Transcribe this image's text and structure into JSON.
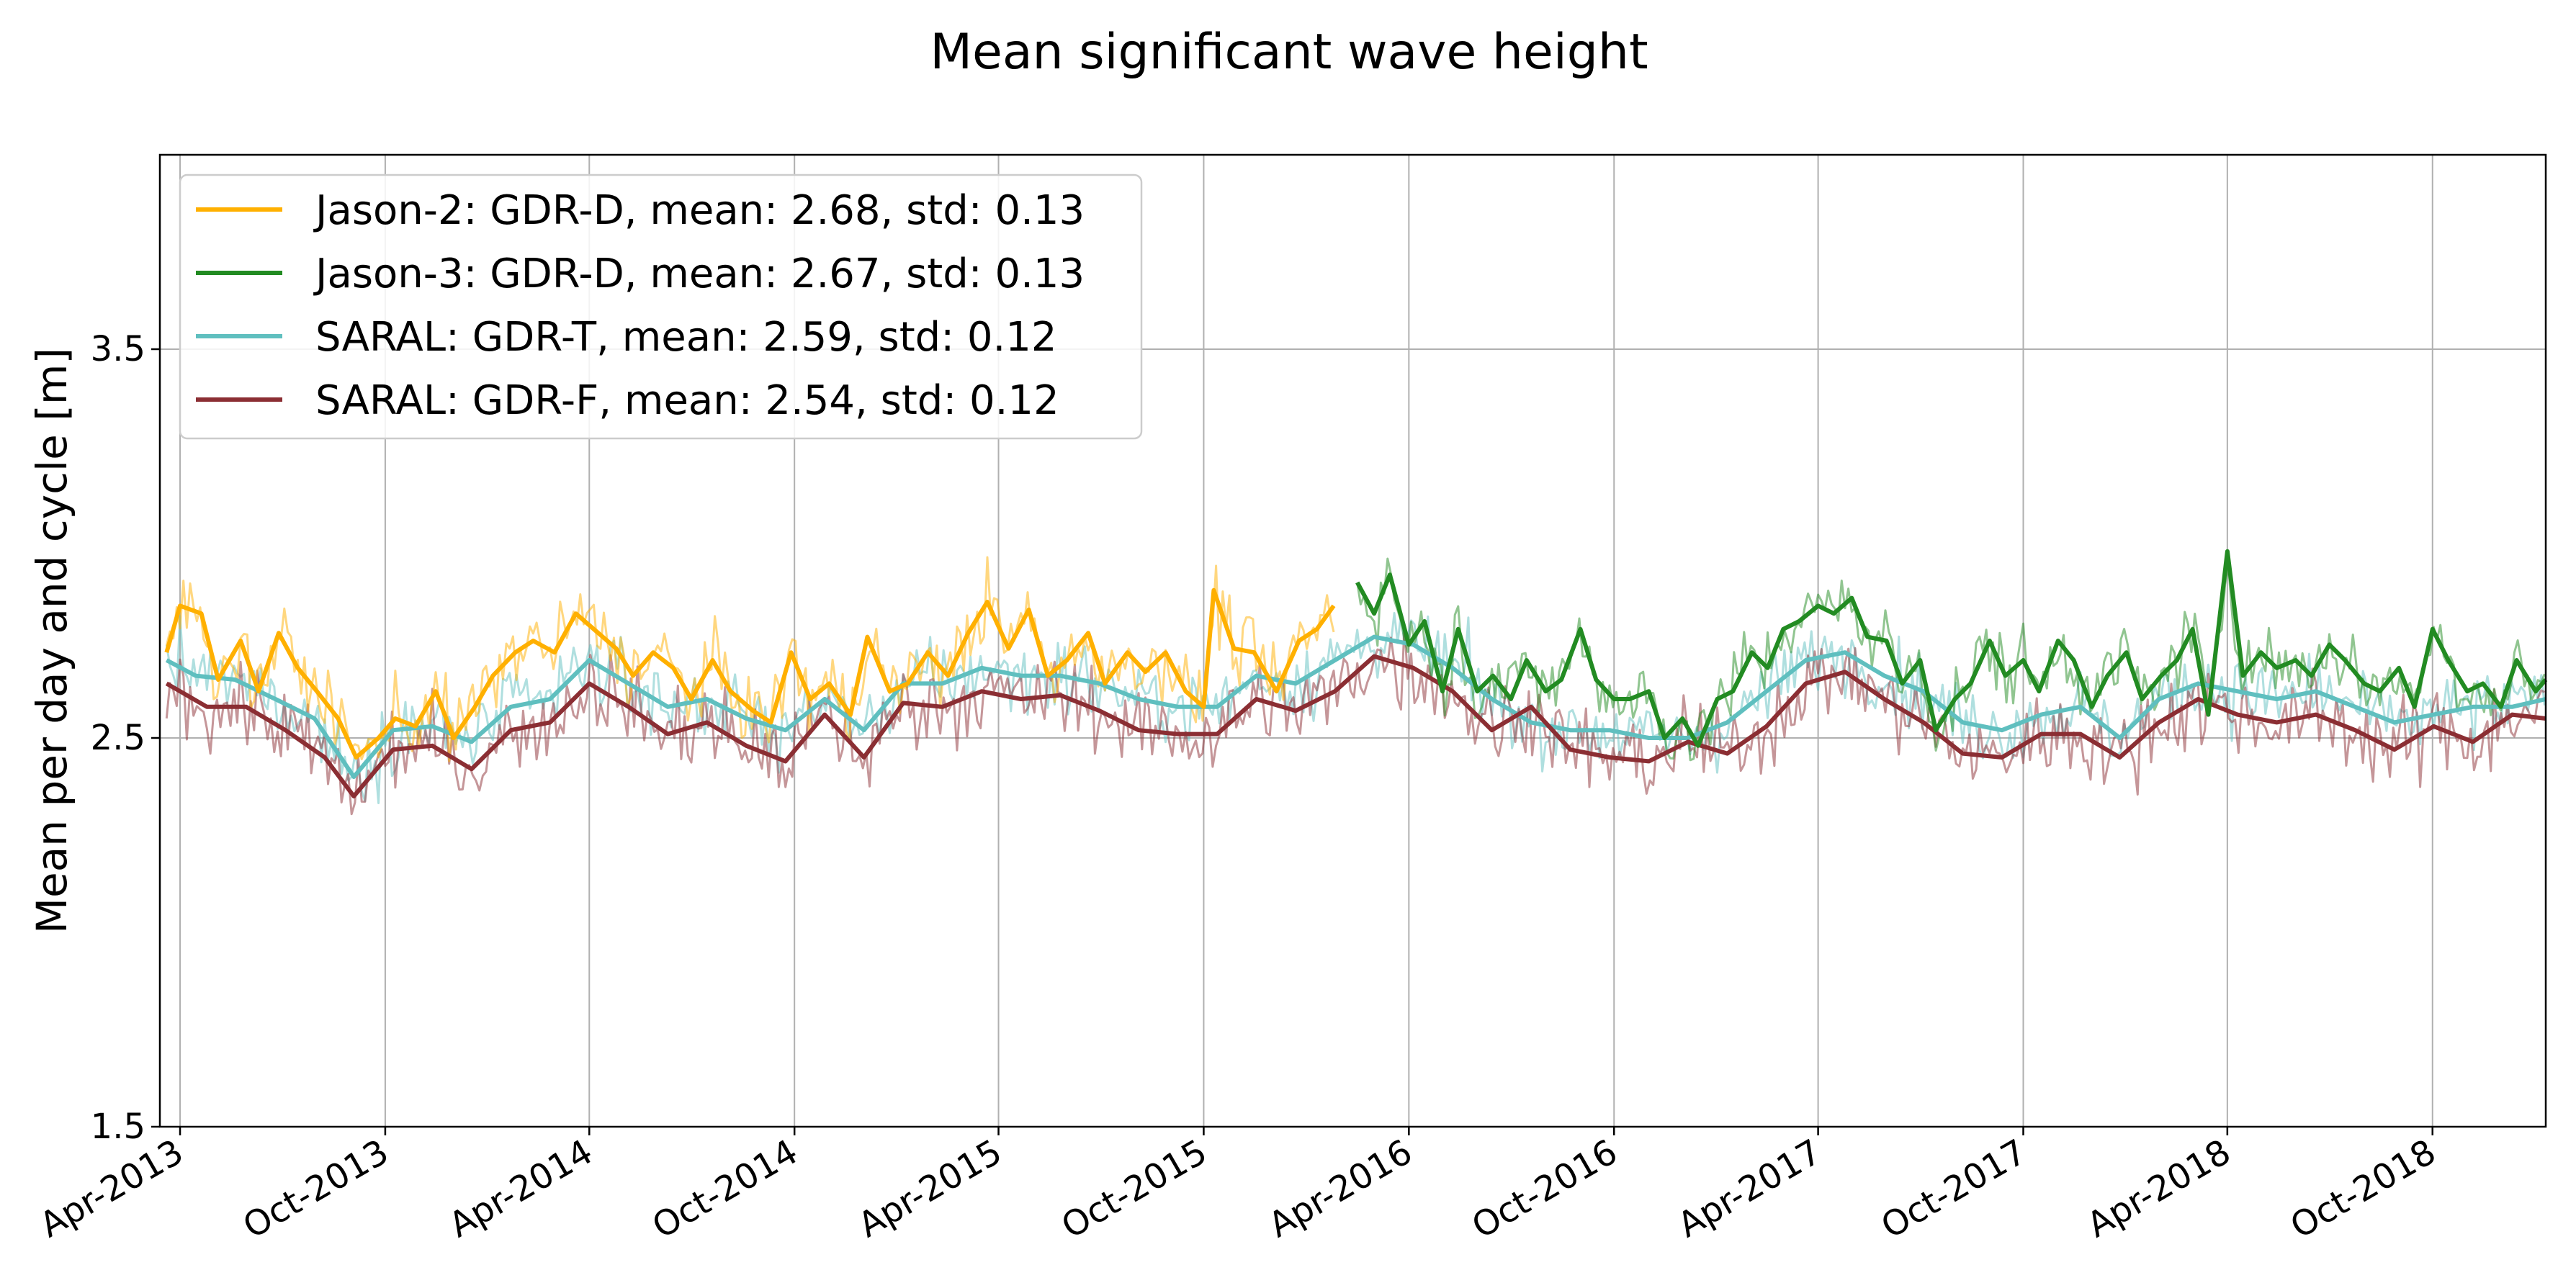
{
  "chart_data": {
    "type": "line",
    "title": "Mean significant wave height",
    "xlabel": "",
    "ylabel": "Mean per day and cycle [m]",
    "ylim": [
      1.5,
      4.0
    ],
    "yticks": [
      1.5,
      2.5,
      3.5
    ],
    "xlim": [
      "2013-03-14",
      "2019-01-10"
    ],
    "xticks": [
      {
        "date": "2013-04-01",
        "label": "Apr-2013"
      },
      {
        "date": "2013-10-01",
        "label": "Oct-2013"
      },
      {
        "date": "2014-04-01",
        "label": "Apr-2014"
      },
      {
        "date": "2014-10-01",
        "label": "Oct-2014"
      },
      {
        "date": "2015-04-01",
        "label": "Apr-2015"
      },
      {
        "date": "2015-10-01",
        "label": "Oct-2015"
      },
      {
        "date": "2016-04-01",
        "label": "Apr-2016"
      },
      {
        "date": "2016-10-01",
        "label": "Oct-2016"
      },
      {
        "date": "2017-04-01",
        "label": "Apr-2017"
      },
      {
        "date": "2017-10-01",
        "label": "Oct-2017"
      },
      {
        "date": "2018-04-01",
        "label": "Apr-2018"
      },
      {
        "date": "2018-10-01",
        "label": "Oct-2018"
      }
    ],
    "grid": true,
    "legend_position": "upper-left",
    "series": [
      {
        "name": "Jason-2: GDR-D, mean: 2.68, std: 0.13",
        "color": "#ffb000",
        "cycle_points": [
          [
            "2013-03-20",
            2.72
          ],
          [
            "2013-04-01",
            2.84
          ],
          [
            "2013-04-20",
            2.82
          ],
          [
            "2013-05-05",
            2.65
          ],
          [
            "2013-05-25",
            2.75
          ],
          [
            "2013-06-10",
            2.62
          ],
          [
            "2013-06-28",
            2.77
          ],
          [
            "2013-07-15",
            2.68
          ],
          [
            "2013-08-01",
            2.62
          ],
          [
            "2013-08-20",
            2.55
          ],
          [
            "2013-09-05",
            2.45
          ],
          [
            "2013-09-25",
            2.5
          ],
          [
            "2013-10-10",
            2.55
          ],
          [
            "2013-10-28",
            2.53
          ],
          [
            "2013-11-15",
            2.62
          ],
          [
            "2013-12-01",
            2.5
          ],
          [
            "2013-12-20",
            2.58
          ],
          [
            "2014-01-05",
            2.66
          ],
          [
            "2014-01-25",
            2.72
          ],
          [
            "2014-02-10",
            2.75
          ],
          [
            "2014-03-01",
            2.72
          ],
          [
            "2014-03-20",
            2.82
          ],
          [
            "2014-04-05",
            2.78
          ],
          [
            "2014-04-25",
            2.73
          ],
          [
            "2014-05-10",
            2.66
          ],
          [
            "2014-05-28",
            2.72
          ],
          [
            "2014-06-15",
            2.68
          ],
          [
            "2014-07-01",
            2.6
          ],
          [
            "2014-07-20",
            2.7
          ],
          [
            "2014-08-05",
            2.62
          ],
          [
            "2014-08-25",
            2.57
          ],
          [
            "2014-09-10",
            2.54
          ],
          [
            "2014-09-28",
            2.72
          ],
          [
            "2014-10-15",
            2.6
          ],
          [
            "2014-11-01",
            2.64
          ],
          [
            "2014-11-20",
            2.56
          ],
          [
            "2014-12-05",
            2.76
          ],
          [
            "2014-12-25",
            2.62
          ],
          [
            "2015-01-10",
            2.64
          ],
          [
            "2015-01-28",
            2.72
          ],
          [
            "2015-02-15",
            2.66
          ],
          [
            "2015-03-05",
            2.77
          ],
          [
            "2015-03-22",
            2.85
          ],
          [
            "2015-04-10",
            2.73
          ],
          [
            "2015-04-28",
            2.83
          ],
          [
            "2015-05-15",
            2.66
          ],
          [
            "2015-06-01",
            2.7
          ],
          [
            "2015-06-20",
            2.77
          ],
          [
            "2015-07-05",
            2.64
          ],
          [
            "2015-07-25",
            2.72
          ],
          [
            "2015-08-10",
            2.67
          ],
          [
            "2015-08-28",
            2.72
          ],
          [
            "2015-09-15",
            2.62
          ],
          [
            "2015-10-01",
            2.58
          ],
          [
            "2015-10-10",
            2.88
          ],
          [
            "2015-10-28",
            2.73
          ],
          [
            "2015-11-15",
            2.72
          ],
          [
            "2015-12-05",
            2.62
          ],
          [
            "2015-12-25",
            2.75
          ],
          [
            "2016-01-10",
            2.78
          ],
          [
            "2016-01-25",
            2.84
          ]
        ]
      },
      {
        "name": "Jason-3: GDR-D, mean: 2.67, std: 0.13",
        "color": "#228b22",
        "cycle_points": [
          [
            "2016-02-15",
            2.9
          ],
          [
            "2016-03-01",
            2.82
          ],
          [
            "2016-03-15",
            2.92
          ],
          [
            "2016-04-01",
            2.74
          ],
          [
            "2016-04-15",
            2.8
          ],
          [
            "2016-05-01",
            2.62
          ],
          [
            "2016-05-15",
            2.78
          ],
          [
            "2016-06-01",
            2.62
          ],
          [
            "2016-06-15",
            2.66
          ],
          [
            "2016-07-01",
            2.6
          ],
          [
            "2016-07-15",
            2.7
          ],
          [
            "2016-08-01",
            2.62
          ],
          [
            "2016-08-15",
            2.65
          ],
          [
            "2016-09-01",
            2.78
          ],
          [
            "2016-09-15",
            2.65
          ],
          [
            "2016-10-01",
            2.6
          ],
          [
            "2016-10-15",
            2.6
          ],
          [
            "2016-11-01",
            2.62
          ],
          [
            "2016-11-15",
            2.5
          ],
          [
            "2016-12-01",
            2.55
          ],
          [
            "2016-12-15",
            2.48
          ],
          [
            "2017-01-01",
            2.6
          ],
          [
            "2017-01-15",
            2.62
          ],
          [
            "2017-02-01",
            2.72
          ],
          [
            "2017-02-15",
            2.68
          ],
          [
            "2017-03-01",
            2.78
          ],
          [
            "2017-03-15",
            2.8
          ],
          [
            "2017-04-01",
            2.84
          ],
          [
            "2017-04-15",
            2.82
          ],
          [
            "2017-05-01",
            2.86
          ],
          [
            "2017-05-15",
            2.76
          ],
          [
            "2017-06-01",
            2.75
          ],
          [
            "2017-06-15",
            2.64
          ],
          [
            "2017-07-01",
            2.7
          ],
          [
            "2017-07-15",
            2.52
          ],
          [
            "2017-08-01",
            2.6
          ],
          [
            "2017-08-15",
            2.64
          ],
          [
            "2017-09-01",
            2.75
          ],
          [
            "2017-09-15",
            2.66
          ],
          [
            "2017-10-01",
            2.7
          ],
          [
            "2017-10-15",
            2.62
          ],
          [
            "2017-11-01",
            2.75
          ],
          [
            "2017-11-15",
            2.7
          ],
          [
            "2017-12-01",
            2.58
          ],
          [
            "2017-12-15",
            2.66
          ],
          [
            "2018-01-01",
            2.72
          ],
          [
            "2018-01-15",
            2.6
          ],
          [
            "2018-02-01",
            2.66
          ],
          [
            "2018-02-15",
            2.7
          ],
          [
            "2018-03-01",
            2.78
          ],
          [
            "2018-03-15",
            2.56
          ],
          [
            "2018-04-01",
            2.98
          ],
          [
            "2018-04-15",
            2.66
          ],
          [
            "2018-05-01",
            2.72
          ],
          [
            "2018-05-15",
            2.68
          ],
          [
            "2018-06-01",
            2.7
          ],
          [
            "2018-06-15",
            2.66
          ],
          [
            "2018-07-01",
            2.74
          ],
          [
            "2018-07-15",
            2.7
          ],
          [
            "2018-08-01",
            2.64
          ],
          [
            "2018-08-15",
            2.62
          ],
          [
            "2018-09-01",
            2.68
          ],
          [
            "2018-09-15",
            2.58
          ],
          [
            "2018-10-01",
            2.78
          ],
          [
            "2018-10-15",
            2.7
          ],
          [
            "2018-11-01",
            2.62
          ],
          [
            "2018-11-15",
            2.64
          ],
          [
            "2018-12-01",
            2.58
          ],
          [
            "2018-12-15",
            2.7
          ],
          [
            "2019-01-01",
            2.62
          ],
          [
            "2019-01-10",
            2.65
          ]
        ]
      },
      {
        "name": "SARAL: GDR-T, mean: 2.59, std: 0.12",
        "color": "#5fbfbf",
        "cycle_points": [
          [
            "2013-03-20",
            2.7
          ],
          [
            "2013-04-15",
            2.66
          ],
          [
            "2013-05-20",
            2.65
          ],
          [
            "2013-06-25",
            2.6
          ],
          [
            "2013-07-30",
            2.55
          ],
          [
            "2013-09-03",
            2.4
          ],
          [
            "2013-10-08",
            2.52
          ],
          [
            "2013-11-12",
            2.53
          ],
          [
            "2013-12-17",
            2.49
          ],
          [
            "2014-01-21",
            2.58
          ],
          [
            "2014-02-25",
            2.6
          ],
          [
            "2014-04-01",
            2.7
          ],
          [
            "2014-05-06",
            2.64
          ],
          [
            "2014-06-10",
            2.58
          ],
          [
            "2014-07-15",
            2.6
          ],
          [
            "2014-08-19",
            2.55
          ],
          [
            "2014-09-23",
            2.52
          ],
          [
            "2014-10-28",
            2.6
          ],
          [
            "2014-12-02",
            2.52
          ],
          [
            "2015-01-06",
            2.64
          ],
          [
            "2015-02-10",
            2.64
          ],
          [
            "2015-03-17",
            2.68
          ],
          [
            "2015-04-21",
            2.66
          ],
          [
            "2015-05-26",
            2.66
          ],
          [
            "2015-06-30",
            2.64
          ],
          [
            "2015-08-04",
            2.6
          ],
          [
            "2015-09-08",
            2.58
          ],
          [
            "2015-10-13",
            2.58
          ],
          [
            "2015-11-17",
            2.66
          ],
          [
            "2015-12-22",
            2.64
          ],
          [
            "2016-01-26",
            2.7
          ],
          [
            "2016-03-01",
            2.76
          ],
          [
            "2016-04-05",
            2.74
          ],
          [
            "2016-05-10",
            2.68
          ],
          [
            "2016-06-14",
            2.6
          ],
          [
            "2016-07-19",
            2.54
          ],
          [
            "2016-08-23",
            2.52
          ],
          [
            "2016-09-27",
            2.52
          ],
          [
            "2016-11-01",
            2.5
          ],
          [
            "2016-12-06",
            2.5
          ],
          [
            "2017-01-10",
            2.54
          ],
          [
            "2017-02-14",
            2.62
          ],
          [
            "2017-03-21",
            2.7
          ],
          [
            "2017-04-25",
            2.72
          ],
          [
            "2017-05-30",
            2.66
          ],
          [
            "2017-07-04",
            2.62
          ],
          [
            "2017-08-08",
            2.54
          ],
          [
            "2017-09-12",
            2.52
          ],
          [
            "2017-10-17",
            2.56
          ],
          [
            "2017-11-21",
            2.58
          ],
          [
            "2017-12-26",
            2.5
          ],
          [
            "2018-01-30",
            2.6
          ],
          [
            "2018-03-06",
            2.64
          ],
          [
            "2018-04-10",
            2.62
          ],
          [
            "2018-05-15",
            2.6
          ],
          [
            "2018-06-19",
            2.62
          ],
          [
            "2018-07-24",
            2.58
          ],
          [
            "2018-08-28",
            2.54
          ],
          [
            "2018-10-02",
            2.56
          ],
          [
            "2018-11-06",
            2.58
          ],
          [
            "2018-12-11",
            2.58
          ],
          [
            "2019-01-10",
            2.6
          ]
        ]
      },
      {
        "name": "SARAL: GDR-F, mean: 2.54, std: 0.12",
        "color": "#8b2e33",
        "cycle_points": [
          [
            "2013-03-20",
            2.64
          ],
          [
            "2013-04-25",
            2.58
          ],
          [
            "2013-05-30",
            2.58
          ],
          [
            "2013-07-04",
            2.52
          ],
          [
            "2013-08-08",
            2.45
          ],
          [
            "2013-09-03",
            2.35
          ],
          [
            "2013-10-08",
            2.47
          ],
          [
            "2013-11-12",
            2.48
          ],
          [
            "2013-12-17",
            2.42
          ],
          [
            "2014-01-21",
            2.52
          ],
          [
            "2014-02-25",
            2.54
          ],
          [
            "2014-04-01",
            2.64
          ],
          [
            "2014-05-06",
            2.58
          ],
          [
            "2014-06-10",
            2.51
          ],
          [
            "2014-07-15",
            2.54
          ],
          [
            "2014-08-19",
            2.48
          ],
          [
            "2014-09-23",
            2.44
          ],
          [
            "2014-10-28",
            2.56
          ],
          [
            "2014-12-02",
            2.45
          ],
          [
            "2015-01-06",
            2.59
          ],
          [
            "2015-02-10",
            2.58
          ],
          [
            "2015-03-17",
            2.62
          ],
          [
            "2015-04-21",
            2.6
          ],
          [
            "2015-05-26",
            2.61
          ],
          [
            "2015-06-30",
            2.57
          ],
          [
            "2015-08-04",
            2.52
          ],
          [
            "2015-09-08",
            2.51
          ],
          [
            "2015-10-13",
            2.51
          ],
          [
            "2015-11-17",
            2.6
          ],
          [
            "2015-12-22",
            2.57
          ],
          [
            "2016-01-26",
            2.62
          ],
          [
            "2016-03-01",
            2.71
          ],
          [
            "2016-04-05",
            2.68
          ],
          [
            "2016-05-10",
            2.62
          ],
          [
            "2016-06-14",
            2.52
          ],
          [
            "2016-07-19",
            2.58
          ],
          [
            "2016-08-23",
            2.47
          ],
          [
            "2016-09-27",
            2.45
          ],
          [
            "2016-11-01",
            2.44
          ],
          [
            "2016-12-06",
            2.49
          ],
          [
            "2017-01-10",
            2.46
          ],
          [
            "2017-02-14",
            2.53
          ],
          [
            "2017-03-21",
            2.64
          ],
          [
            "2017-04-25",
            2.67
          ],
          [
            "2017-05-30",
            2.6
          ],
          [
            "2017-07-04",
            2.54
          ],
          [
            "2017-08-08",
            2.46
          ],
          [
            "2017-09-12",
            2.45
          ],
          [
            "2017-10-17",
            2.51
          ],
          [
            "2017-11-21",
            2.51
          ],
          [
            "2017-12-26",
            2.45
          ],
          [
            "2018-01-30",
            2.54
          ],
          [
            "2018-03-06",
            2.6
          ],
          [
            "2018-04-10",
            2.56
          ],
          [
            "2018-05-15",
            2.54
          ],
          [
            "2018-06-19",
            2.56
          ],
          [
            "2018-07-24",
            2.52
          ],
          [
            "2018-08-28",
            2.47
          ],
          [
            "2018-10-02",
            2.53
          ],
          [
            "2018-11-06",
            2.49
          ],
          [
            "2018-12-11",
            2.56
          ],
          [
            "2019-01-10",
            2.55
          ]
        ]
      }
    ]
  }
}
